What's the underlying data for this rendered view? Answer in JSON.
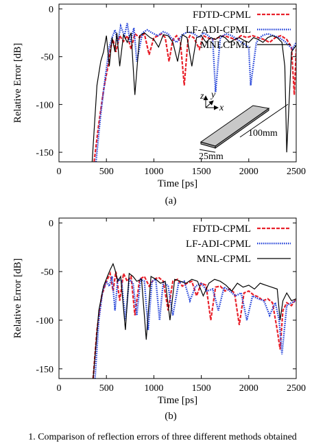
{
  "chart_data": [
    {
      "type": "line",
      "panel_label": "(a)",
      "xlabel": "Time [ps]",
      "ylabel": "Relative Error [dB]",
      "xlim": [
        0,
        2500
      ],
      "ylim": [
        -160,
        5
      ],
      "xticks": [
        0,
        500,
        1000,
        1500,
        2000,
        2500
      ],
      "yticks": [
        0,
        -50,
        -100,
        -150
      ],
      "legend_position": "top-right",
      "series": [
        {
          "name": "FDTD-CPML",
          "color": "#e8202a",
          "style": "dashed",
          "x": [
            370,
            420,
            470,
            520,
            540,
            570,
            600,
            640,
            680,
            720,
            760,
            800,
            850,
            900,
            950,
            1000,
            1050,
            1080,
            1120,
            1160,
            1200,
            1240,
            1280,
            1320,
            1360,
            1380,
            1420,
            1480,
            1520,
            1560,
            1620,
            1680,
            1740,
            1800,
            1860,
            1920,
            1980,
            2040,
            2100,
            2160,
            2220,
            2280,
            2340,
            2400,
            2450,
            2480,
            2500
          ],
          "y": [
            -160,
            -120,
            -85,
            -58,
            -42,
            -32,
            -45,
            -28,
            -34,
            -28,
            -42,
            -26,
            -30,
            -26,
            -48,
            -30,
            -28,
            -26,
            -30,
            -55,
            -32,
            -28,
            -35,
            -80,
            -32,
            -28,
            -30,
            -42,
            -28,
            -30,
            -32,
            -30,
            -28,
            -30,
            -32,
            -28,
            -30,
            -28,
            -30,
            -32,
            -35,
            -30,
            -28,
            -32,
            -40,
            -90,
            -42
          ]
        },
        {
          "name": "LF-ADI-CPML",
          "color": "#1f3fd8",
          "style": "dotted",
          "x": [
            390,
            440,
            490,
            530,
            560,
            590,
            620,
            650,
            690,
            720,
            750,
            790,
            820,
            880,
            930,
            980,
            1040,
            1100,
            1150,
            1180,
            1240,
            1300,
            1360,
            1420,
            1480,
            1520,
            1560,
            1620,
            1650,
            1700,
            1760,
            1820,
            1880,
            1940,
            2000,
            2020,
            2080,
            2140,
            2200,
            2260,
            2320,
            2380,
            2420,
            2460,
            2500
          ],
          "y": [
            -160,
            -110,
            -70,
            -40,
            -30,
            -22,
            -35,
            -18,
            -28,
            -15,
            -35,
            -20,
            -55,
            -25,
            -22,
            -25,
            -28,
            -24,
            -26,
            -30,
            -35,
            -27,
            -24,
            -26,
            -30,
            -25,
            -27,
            -32,
            -87,
            -30,
            -26,
            -28,
            -32,
            -36,
            -40,
            -80,
            -35,
            -28,
            -26,
            -28,
            -30,
            -34,
            -38,
            -42,
            -35
          ]
        },
        {
          "name": "MNLCPML",
          "color": "#000000",
          "style": "solid",
          "x": [
            350,
            400,
            440,
            470,
            500,
            530,
            560,
            590,
            610,
            640,
            680,
            720,
            760,
            800,
            850,
            900,
            960,
            1000,
            1050,
            1100,
            1150,
            1200,
            1250,
            1300,
            1350,
            1400,
            1450,
            1500,
            1550,
            1600,
            1650,
            1700,
            1750,
            1800,
            1850,
            1900,
            1950,
            2000,
            2050,
            2100,
            2150,
            2200,
            2250,
            2300,
            2350,
            2380,
            2400,
            2450,
            2500
          ],
          "y": [
            -160,
            -80,
            -55,
            -45,
            -28,
            -60,
            -30,
            -45,
            -25,
            -60,
            -27,
            -35,
            -25,
            -90,
            -28,
            -25,
            -30,
            -32,
            -40,
            -27,
            -28,
            -35,
            -55,
            -27,
            -30,
            -60,
            -30,
            -28,
            -35,
            -30,
            -32,
            -28,
            -30,
            -35,
            -32,
            -30,
            -33,
            -35,
            -30,
            -32,
            -35,
            -30,
            -28,
            -30,
            -35,
            -60,
            -150,
            -45,
            -38
          ]
        }
      ],
      "inset": {
        "z_label": "z",
        "y_label": "y",
        "x_label": "x",
        "length_label": "100mm",
        "width_label": "25mm"
      }
    },
    {
      "type": "line",
      "panel_label": "(b)",
      "xlabel": "Time [ps]",
      "ylabel": "Relative Error [dB]",
      "xlim": [
        0,
        2500
      ],
      "ylim": [
        -160,
        5
      ],
      "xticks": [
        0,
        500,
        1000,
        1500,
        2000,
        2500
      ],
      "yticks": [
        0,
        -50,
        -100,
        -150
      ],
      "legend_position": "top-right",
      "series": [
        {
          "name": "FDTD-CPML",
          "color": "#e8202a",
          "style": "dashed",
          "x": [
            360,
            400,
            450,
            500,
            540,
            570,
            600,
            640,
            680,
            720,
            760,
            800,
            850,
            900,
            950,
            1000,
            1050,
            1100,
            1150,
            1200,
            1250,
            1300,
            1350,
            1400,
            1450,
            1500,
            1550,
            1600,
            1650,
            1700,
            1750,
            1800,
            1850,
            1900,
            1950,
            2000,
            2050,
            2100,
            2150,
            2200,
            2250,
            2300,
            2330,
            2360,
            2400,
            2450,
            2500
          ],
          "y": [
            -160,
            -110,
            -75,
            -60,
            -52,
            -70,
            -50,
            -80,
            -52,
            -60,
            -55,
            -95,
            -58,
            -55,
            -65,
            -58,
            -56,
            -60,
            -90,
            -60,
            -58,
            -65,
            -62,
            -60,
            -75,
            -62,
            -64,
            -100,
            -66,
            -65,
            -70,
            -68,
            -72,
            -105,
            -72,
            -70,
            -74,
            -76,
            -80,
            -78,
            -82,
            -110,
            -130,
            -90,
            -82,
            -85,
            -78
          ]
        },
        {
          "name": "LF-ADI-CPML",
          "color": "#1f3fd8",
          "style": "dotted",
          "x": [
            380,
            420,
            460,
            500,
            530,
            560,
            590,
            620,
            660,
            700,
            740,
            780,
            820,
            860,
            900,
            940,
            980,
            1020,
            1060,
            1100,
            1150,
            1200,
            1260,
            1320,
            1380,
            1440,
            1500,
            1560,
            1620,
            1680,
            1740,
            1800,
            1860,
            1920,
            1980,
            2040,
            2100,
            2160,
            2220,
            2280,
            2320,
            2350,
            2400,
            2450,
            2500
          ],
          "y": [
            -160,
            -100,
            -70,
            -60,
            -65,
            -55,
            -90,
            -58,
            -60,
            -100,
            -58,
            -62,
            -95,
            -58,
            -60,
            -110,
            -60,
            -58,
            -100,
            -60,
            -65,
            -95,
            -62,
            -60,
            -80,
            -65,
            -62,
            -70,
            -68,
            -90,
            -66,
            -70,
            -75,
            -72,
            -100,
            -75,
            -78,
            -80,
            -95,
            -82,
            -100,
            -135,
            -85,
            -82,
            -80
          ]
        },
        {
          "name": "MNL-CPML",
          "color": "#000000",
          "style": "solid",
          "x": [
            360,
            420,
            470,
            510,
            540,
            570,
            590,
            620,
            650,
            700,
            740,
            780,
            820,
            870,
            920,
            970,
            1020,
            1070,
            1120,
            1170,
            1220,
            1280,
            1340,
            1400,
            1460,
            1520,
            1580,
            1640,
            1700,
            1760,
            1820,
            1880,
            1940,
            2000,
            2060,
            2120,
            2180,
            2240,
            2300,
            2330,
            2360,
            2400,
            2450,
            2500
          ],
          "y": [
            -160,
            -90,
            -65,
            -55,
            -48,
            -42,
            -48,
            -60,
            -55,
            -110,
            -52,
            -55,
            -60,
            -58,
            -120,
            -55,
            -58,
            -62,
            -60,
            -100,
            -58,
            -60,
            -62,
            -58,
            -60,
            -75,
            -62,
            -58,
            -60,
            -64,
            -70,
            -62,
            -66,
            -64,
            -68,
            -62,
            -64,
            -66,
            -68,
            -100,
            -80,
            -72,
            -80,
            -78
          ]
        }
      ]
    }
  ],
  "caption": "1.  Comparison of reflection errors of three different methods obtained"
}
